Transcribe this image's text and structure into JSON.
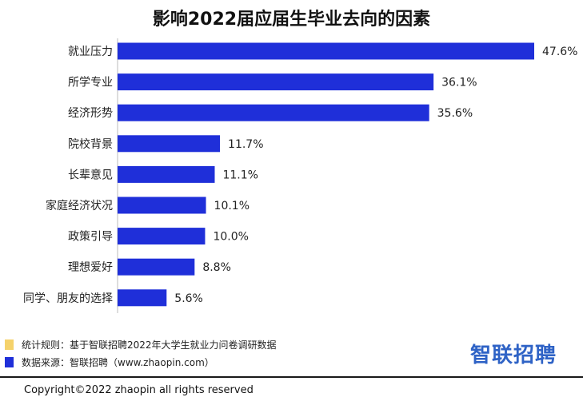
{
  "chart_data": {
    "type": "bar",
    "orientation": "horizontal",
    "title": "影响2022届应届生毕业去向的因素",
    "categories": [
      "就业压力",
      "所学专业",
      "经济形势",
      "院校背景",
      "长辈意见",
      "家庭经济状况",
      "政策引导",
      "理想爱好",
      "同学、朋友的选择"
    ],
    "values": [
      47.6,
      36.1,
      35.6,
      11.7,
      11.1,
      10.1,
      10.0,
      8.8,
      5.6
    ],
    "value_labels": [
      "47.6%",
      "36.1%",
      "35.6%",
      "11.7%",
      "11.1%",
      "10.1%",
      "10.0%",
      "8.8%",
      "5.6%"
    ],
    "bar_color": "#1f2fd9",
    "xlim": [
      0,
      50
    ],
    "grid": false,
    "legend": "none"
  },
  "notes": [
    {
      "text": "统计规则：基于智联招聘2022年大学生就业力问卷调研数据",
      "color": "#f5d26b"
    },
    {
      "text": "数据来源：智联招聘（www.zhaopin.com）",
      "color": "#1f2fd9"
    }
  ],
  "logo_text": "智联招聘",
  "copyright": "Copyright©2022 zhaopin all rights reserved"
}
